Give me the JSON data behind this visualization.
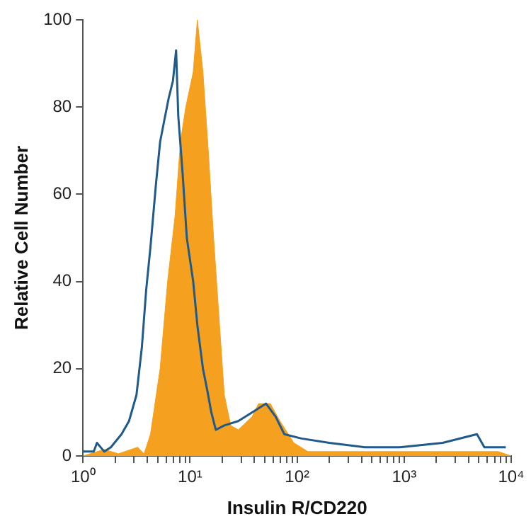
{
  "chart_data": {
    "type": "line",
    "xlabel": "Insulin R/CD220",
    "ylabel": "Relative Cell Number",
    "log": "x",
    "grid": false,
    "legend": false,
    "marker": "none",
    "line_style": "solid",
    "xlim": [
      1,
      10000
    ],
    "ylim": [
      0,
      100
    ],
    "xticks": [
      {
        "value": 1,
        "label": "10⁰"
      },
      {
        "value": 2,
        "label": null
      },
      {
        "value": 3,
        "label": null
      },
      {
        "value": 4,
        "label": null
      },
      {
        "value": 5,
        "label": null
      },
      {
        "value": 6,
        "label": null
      },
      {
        "value": 7,
        "label": null
      },
      {
        "value": 8,
        "label": null
      },
      {
        "value": 9,
        "label": null
      },
      {
        "value": 10,
        "label": "10¹"
      },
      {
        "value": 20,
        "label": null
      },
      {
        "value": 30,
        "label": null
      },
      {
        "value": 40,
        "label": null
      },
      {
        "value": 50,
        "label": null
      },
      {
        "value": 60,
        "label": null
      },
      {
        "value": 70,
        "label": null
      },
      {
        "value": 80,
        "label": null
      },
      {
        "value": 90,
        "label": null
      },
      {
        "value": 100,
        "label": "10²"
      },
      {
        "value": 200,
        "label": null
      },
      {
        "value": 300,
        "label": null
      },
      {
        "value": 400,
        "label": null
      },
      {
        "value": 500,
        "label": null
      },
      {
        "value": 600,
        "label": null
      },
      {
        "value": 700,
        "label": null
      },
      {
        "value": 800,
        "label": null
      },
      {
        "value": 900,
        "label": null
      },
      {
        "value": 1000,
        "label": "10³"
      },
      {
        "value": 2000,
        "label": null
      },
      {
        "value": 3000,
        "label": null
      },
      {
        "value": 4000,
        "label": null
      },
      {
        "value": 5000,
        "label": null
      },
      {
        "value": 6000,
        "label": null
      },
      {
        "value": 7000,
        "label": null
      },
      {
        "value": 8000,
        "label": null
      },
      {
        "value": 9000,
        "label": null
      },
      {
        "value": 10000,
        "label": "10⁴"
      }
    ],
    "yticks": [
      0,
      20,
      40,
      60,
      80,
      100
    ],
    "series": [
      {
        "type": "area",
        "color": "#f5a01e",
        "x": [
          1,
          1.58,
          2.14,
          3.24,
          3.72,
          4.27,
          5.25,
          6.17,
          7.24,
          8.13,
          9.12,
          10.7,
          11.7,
          13.2,
          14.8,
          16.6,
          19.1,
          20.9,
          24,
          28.2,
          38,
          43.7,
          56.2,
          69.2,
          93.3,
          126,
          501,
          7590,
          10000
        ],
        "values": [
          0,
          1.5,
          0.5,
          2,
          0.5,
          5,
          20,
          40,
          55,
          72,
          80,
          88,
          100,
          88,
          70,
          50,
          28,
          14,
          7,
          6,
          9,
          12,
          12,
          8,
          3,
          1,
          1,
          1,
          0
        ]
      },
      {
        "color": "#1f5a8a",
        "x": [
          1,
          1.26,
          1.35,
          1.58,
          1.82,
          2.29,
          2.69,
          3.16,
          3.55,
          3.89,
          4.27,
          4.79,
          5.25,
          5.75,
          6.31,
          6.92,
          7.41,
          7.76,
          8.51,
          9.33,
          10.7,
          11.7,
          13.2,
          14.5,
          15.8,
          17.4,
          20.9,
          28.2,
          38,
          51.3,
          63.1,
          75.9,
          110,
          200,
          427,
          912,
          2290,
          4790,
          5620,
          8910
        ],
        "values": [
          1,
          1,
          3,
          1,
          2,
          5,
          8,
          14,
          25,
          38,
          48,
          62,
          72,
          77,
          82,
          86,
          93,
          78,
          65,
          50,
          40,
          30,
          20,
          15,
          10,
          6,
          7,
          8,
          10,
          12,
          9,
          5,
          4,
          3,
          2,
          2,
          3,
          5,
          2,
          2
        ]
      }
    ]
  }
}
